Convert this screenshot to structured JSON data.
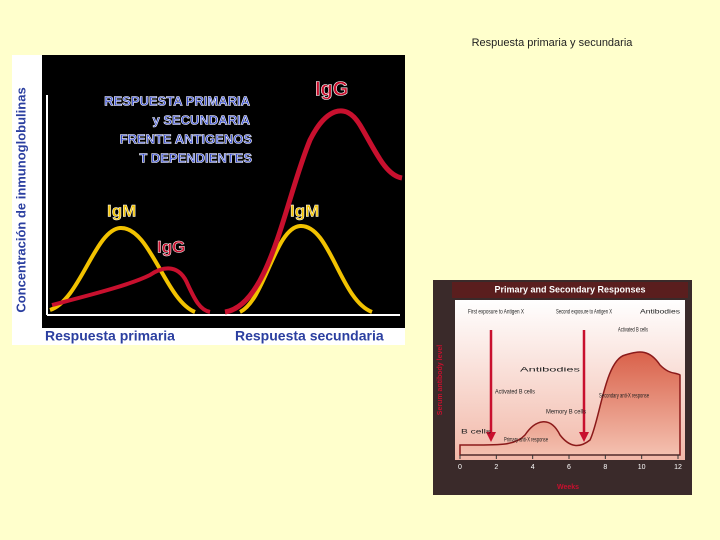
{
  "header": {
    "title": "Respuesta primaria y secundaria"
  },
  "figures": [
    {
      "y_label": "Concentración de inmunoglobulinas",
      "heading": [
        "RESPUESTA PRIMARIA",
        "y SECUNDARIA",
        "FRENTE ANTIGENOS",
        "T DEPENDIENTES"
      ],
      "curve_labels": [
        "IgG",
        "IgM",
        "IgG",
        "IgM"
      ],
      "x_labels": [
        "Respuesta primaria",
        "Respuesta secundaria"
      ]
    },
    {
      "title": "Primary and Secondary Responses",
      "y_label": "Serum antibody level",
      "x_label": "Weeks",
      "xticks": [
        0,
        2,
        4,
        6,
        8,
        10,
        12
      ],
      "annotations": [
        "First exposure to Antigen X",
        "Second exposure to Antigen X",
        "Antibodies",
        "Activated B cells",
        "Memory B cells",
        "B cells",
        "Primary anti-X response",
        "Secondary anti-X response",
        "Antibodies",
        "Activated B cells"
      ]
    }
  ]
}
